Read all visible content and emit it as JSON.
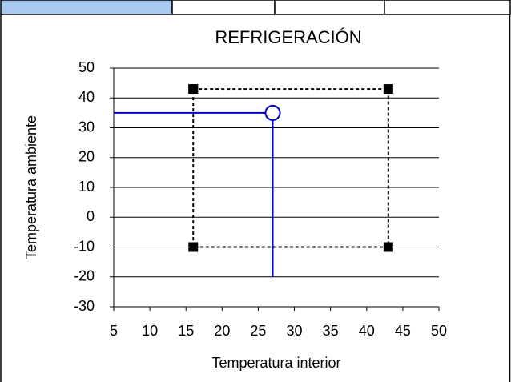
{
  "chart_data": {
    "type": "scatter",
    "title": "REFRIGERACIÓN",
    "xlabel": "Temperatura interior",
    "ylabel": "Temperatura ambiente",
    "xlim": [
      5,
      50
    ],
    "xticks": [
      5,
      10,
      15,
      20,
      25,
      30,
      35,
      40,
      45,
      50
    ],
    "ylim": [
      -30,
      50
    ],
    "yticks": [
      -30,
      -20,
      -10,
      0,
      10,
      20,
      30,
      40,
      50
    ],
    "grid": true,
    "series": [
      {
        "color": "#000000",
        "line_style": "dashed",
        "marker": "square",
        "x": [
          16,
          43,
          43,
          16,
          16
        ],
        "values": [
          43,
          43,
          -10,
          -10,
          43
        ]
      },
      {
        "color": "#0000cc",
        "line_style": "solid",
        "marker": "none",
        "x": [
          5,
          27,
          27
        ],
        "values": [
          35,
          35,
          -20
        ]
      },
      {
        "color": "#0000cc",
        "line_style": "none",
        "marker": "open-circle",
        "x": [
          27
        ],
        "values": [
          35
        ]
      }
    ]
  }
}
